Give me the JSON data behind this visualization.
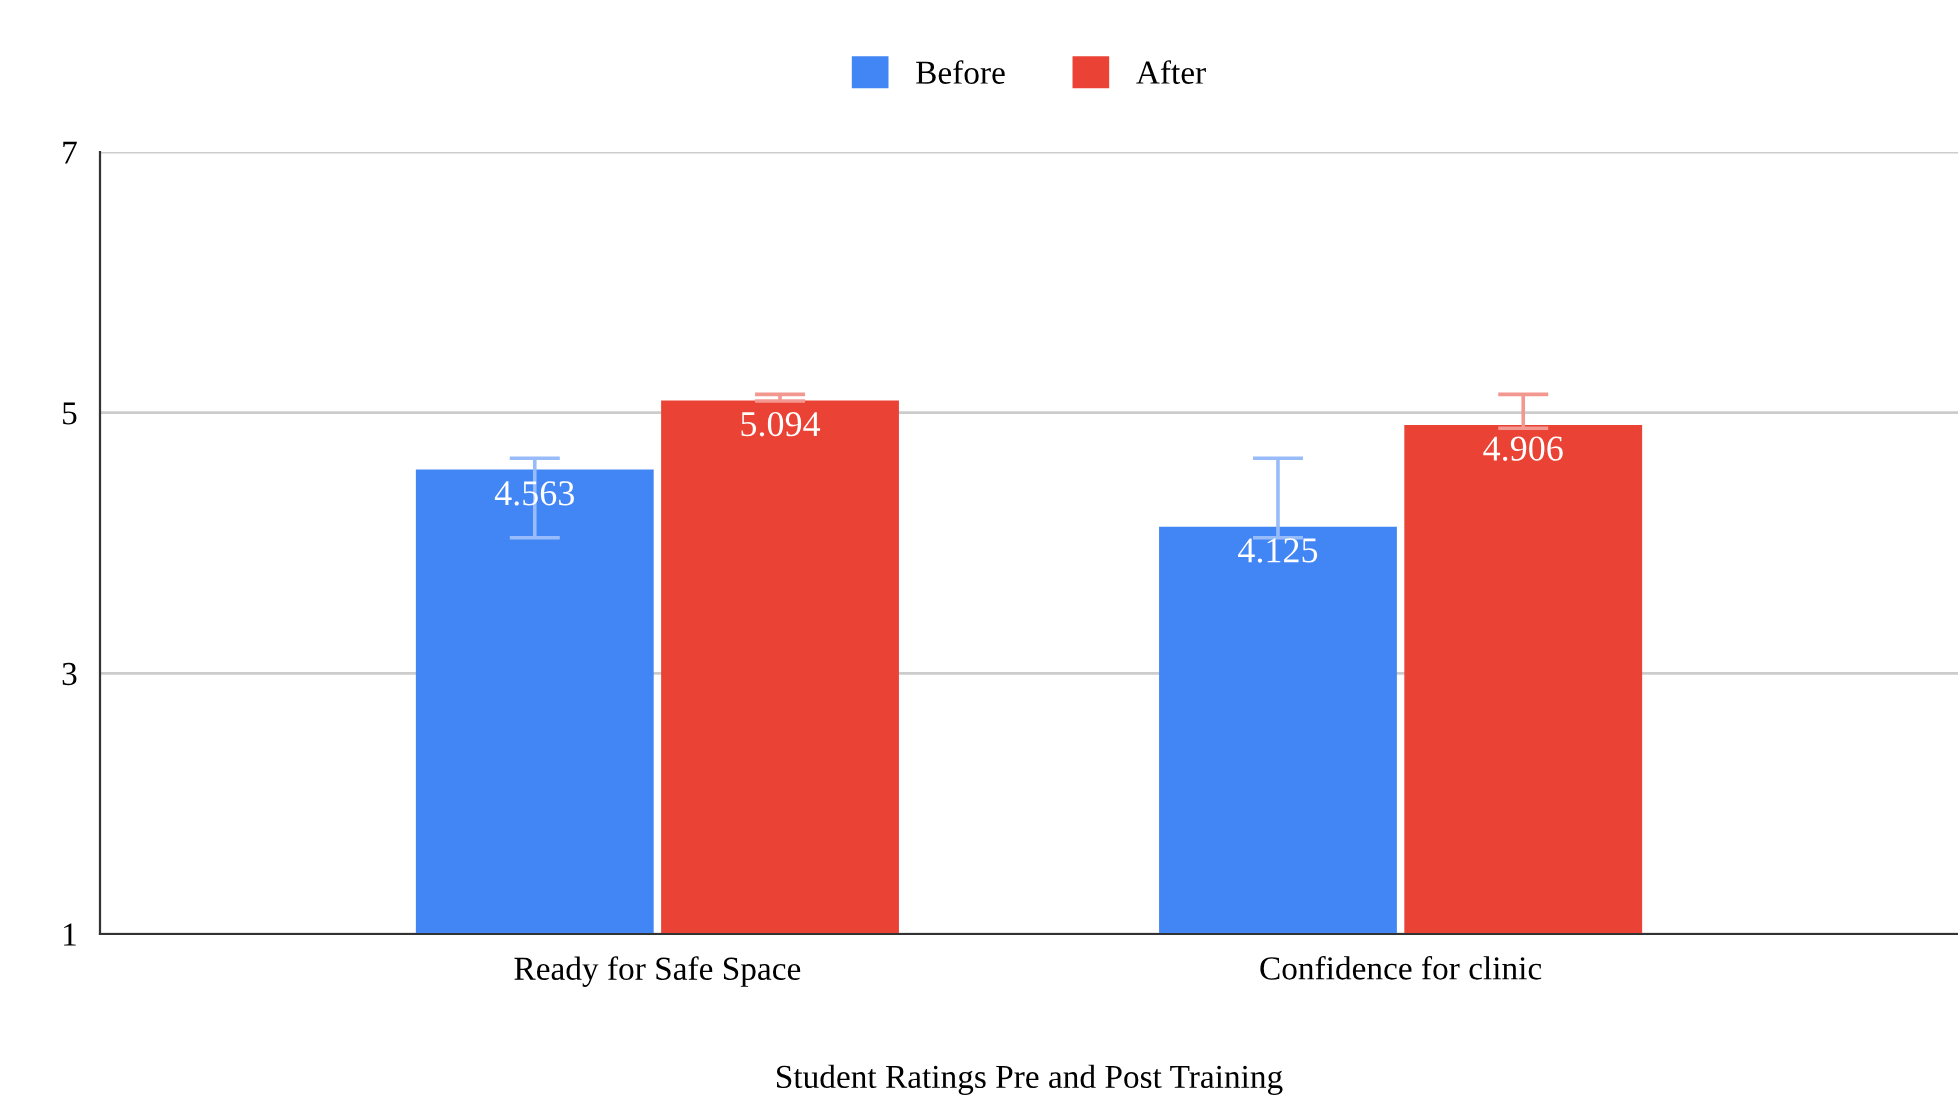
{
  "chart_data": {
    "type": "bar",
    "xlabel": "Student Ratings Pre and Post Training",
    "categories": [
      "Ready for Safe Space",
      "Confidence for clinic"
    ],
    "series": [
      {
        "name": "Before",
        "color": "#4285f4",
        "values": [
          4.563,
          4.125
        ],
        "errors": [
          [
            4.04,
            4.65
          ],
          [
            4.04,
            4.65
          ]
        ]
      },
      {
        "name": "After",
        "color": "#ea4335",
        "values": [
          5.094,
          4.906
        ],
        "errors": [
          [
            5.09,
            5.14
          ],
          [
            4.88,
            5.14
          ]
        ]
      }
    ],
    "ylim": [
      1,
      7
    ],
    "yticks": [
      1,
      3,
      5,
      7
    ],
    "grid": "y",
    "legend": "top",
    "data_labels": true
  }
}
